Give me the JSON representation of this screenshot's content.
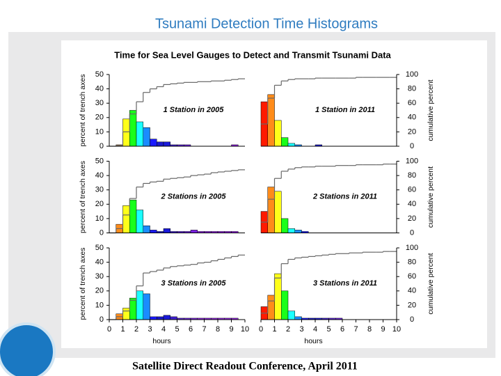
{
  "title": "Tsunami Detection Time Histograms",
  "figure_title": "Time for Sea Level Gauges to Detect and Transmit Tsunami Data",
  "footer": "Satellite Direct Readout Conference, April 2011",
  "bar_colors": [
    "#ff1a00",
    "#ff8c1a",
    "#ffff1a",
    "#1aff1a",
    "#1affff",
    "#1a8cff",
    "#1a1aff",
    "#1a1acc",
    "#1a1ad9",
    "#4020d0",
    "#5a20d8",
    "#6a20e0",
    "#7a20e0",
    "#8a20e0",
    "#8a20e0",
    "#9020e0",
    "#9020e0",
    "#9020e0",
    "#9020e0",
    "#9020e0"
  ],
  "chart_data": [
    {
      "type": "histogram",
      "label": "1 Station in 2005",
      "bins": [
        0,
        0.5,
        1,
        1.5,
        2,
        2.5,
        3,
        3.5,
        4,
        4.5,
        5,
        5.5,
        6,
        6.5,
        7,
        7.5,
        8,
        8.5,
        9,
        9.5,
        10
      ],
      "values": [
        0,
        1,
        19,
        25,
        17,
        13,
        5,
        3,
        3,
        1,
        1,
        1,
        0,
        0,
        0,
        0,
        0,
        0,
        1,
        0
      ],
      "cumulative_values": [
        0,
        1,
        20,
        45,
        62,
        75,
        80,
        83,
        86,
        87,
        88,
        89,
        89,
        90,
        90,
        91,
        91,
        92,
        93,
        94
      ],
      "xlim": [
        0,
        10
      ],
      "ylim": [
        0,
        50
      ],
      "y2lim": [
        0,
        100
      ],
      "yticks": [
        0,
        10,
        20,
        30,
        40,
        50
      ],
      "ylabel": "percent of trench axes"
    },
    {
      "type": "histogram",
      "label": "1 Station in 2011",
      "bins": [
        0,
        0.5,
        1,
        1.5,
        2,
        2.5,
        3,
        3.5,
        4,
        4.5,
        5,
        5.5,
        6,
        6.5,
        7,
        7.5,
        8,
        8.5,
        9,
        9.5,
        10
      ],
      "values": [
        31,
        36,
        18,
        6,
        2,
        1,
        0,
        0,
        1,
        0,
        0,
        0,
        0,
        0,
        0,
        0,
        0,
        0,
        0,
        0
      ],
      "cumulative_values": [
        31,
        67,
        85,
        91,
        93,
        94,
        94,
        94,
        95,
        95,
        95,
        95,
        95,
        95,
        96,
        96,
        96,
        96,
        96,
        96
      ],
      "xlim": [
        0,
        10
      ],
      "ylim": [
        0,
        50
      ],
      "y2lim": [
        0,
        100
      ],
      "y2ticks": [
        0,
        20,
        40,
        60,
        80,
        100
      ],
      "y2label": "cumulative percent"
    },
    {
      "type": "histogram",
      "label": "2 Stations in 2005",
      "bins": [
        0,
        0.5,
        1,
        1.5,
        2,
        2.5,
        3,
        3.5,
        4,
        4.5,
        5,
        5.5,
        6,
        6.5,
        7,
        7.5,
        8,
        8.5,
        9,
        9.5,
        10
      ],
      "values": [
        0,
        6,
        19,
        23,
        16,
        5,
        2,
        1,
        3,
        1,
        1,
        1,
        2,
        1,
        1,
        1,
        1,
        1,
        1,
        0
      ],
      "cumulative_values": [
        0,
        6,
        25,
        48,
        64,
        69,
        71,
        72,
        75,
        76,
        77,
        78,
        80,
        81,
        82,
        84,
        85,
        86,
        87,
        88
      ],
      "xlim": [
        0,
        10
      ],
      "ylim": [
        0,
        50
      ],
      "y2lim": [
        0,
        100
      ],
      "yticks": [
        0,
        10,
        20,
        30,
        40,
        50
      ],
      "ylabel": "percent of trench axes"
    },
    {
      "type": "histogram",
      "label": "2 Stations in 2011",
      "bins": [
        0,
        0.5,
        1,
        1.5,
        2,
        2.5,
        3,
        3.5,
        4,
        4.5,
        5,
        5.5,
        6,
        6.5,
        7,
        7.5,
        8,
        8.5,
        9,
        9.5,
        10
      ],
      "values": [
        15,
        32,
        29,
        10,
        3,
        2,
        1,
        0,
        0,
        0,
        0,
        0,
        0,
        0,
        0,
        0,
        0,
        0,
        0,
        0
      ],
      "cumulative_values": [
        15,
        47,
        76,
        86,
        89,
        91,
        92,
        92,
        93,
        93,
        93,
        94,
        94,
        94,
        95,
        95,
        95,
        95,
        96,
        96
      ],
      "xlim": [
        0,
        10
      ],
      "ylim": [
        0,
        50
      ],
      "y2lim": [
        0,
        100
      ],
      "y2ticks": [
        0,
        20,
        40,
        60,
        80,
        100
      ],
      "y2label": "cumulative percent"
    },
    {
      "type": "histogram",
      "label": "3 Stations in 2005",
      "bins": [
        0,
        0.5,
        1,
        1.5,
        2,
        2.5,
        3,
        3.5,
        4,
        4.5,
        5,
        5.5,
        6,
        6.5,
        7,
        7.5,
        8,
        8.5,
        9,
        9.5,
        10
      ],
      "values": [
        0,
        4,
        8,
        15,
        20,
        18,
        2,
        2,
        3,
        2,
        1,
        1,
        1,
        1,
        1,
        1,
        1,
        1,
        1,
        0
      ],
      "cumulative_values": [
        0,
        4,
        12,
        27,
        47,
        65,
        67,
        69,
        72,
        74,
        75,
        76,
        77,
        79,
        80,
        82,
        84,
        86,
        88,
        90
      ],
      "xlim": [
        0,
        10
      ],
      "ylim": [
        0,
        50
      ],
      "y2lim": [
        0,
        100
      ],
      "yticks": [
        0,
        10,
        20,
        30,
        40,
        50
      ],
      "ylabel": "percent of trench axes",
      "xticks": [
        0,
        1,
        2,
        3,
        4,
        5,
        6,
        7,
        8,
        9,
        10
      ],
      "xlabel": "hours"
    },
    {
      "type": "histogram",
      "label": "3 Stations in 2011",
      "bins": [
        0,
        0.5,
        1,
        1.5,
        2,
        2.5,
        3,
        3.5,
        4,
        4.5,
        5,
        5.5,
        6,
        6.5,
        7,
        7.5,
        8,
        8.5,
        9,
        9.5,
        10
      ],
      "values": [
        9,
        17,
        32,
        20,
        6,
        2,
        1,
        1,
        1,
        1,
        1,
        1,
        0,
        0,
        0,
        0,
        0,
        0,
        0,
        0
      ],
      "cumulative_values": [
        9,
        26,
        58,
        78,
        84,
        86,
        87,
        88,
        89,
        90,
        91,
        92,
        92,
        93,
        93,
        94,
        94,
        94,
        95,
        95
      ],
      "xlim": [
        0,
        10
      ],
      "ylim": [
        0,
        50
      ],
      "y2lim": [
        0,
        100
      ],
      "y2ticks": [
        0,
        20,
        40,
        60,
        80,
        100
      ],
      "y2label": "cumulative percent",
      "xticks": [
        0,
        1,
        2,
        3,
        4,
        5,
        6,
        7,
        8,
        9,
        10
      ],
      "xlabel": "hours"
    }
  ]
}
